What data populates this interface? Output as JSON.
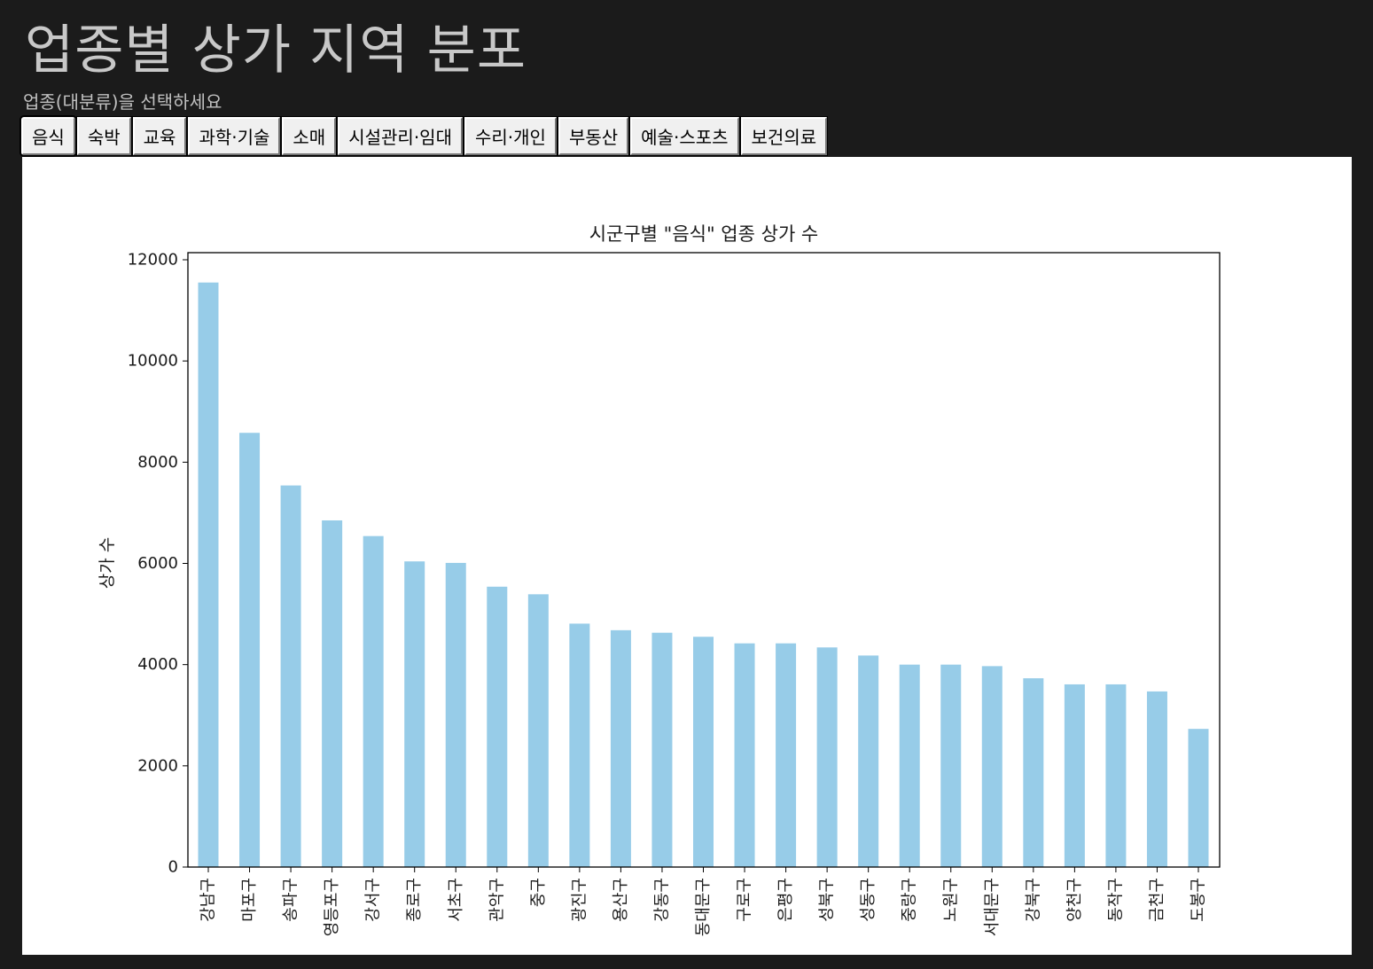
{
  "page": {
    "title": "업종별 상가 지역 분포",
    "instruction": "업종(대분류)을 선택하세요"
  },
  "tabs": [
    {
      "label": "음식",
      "active": true
    },
    {
      "label": "숙박",
      "active": false
    },
    {
      "label": "교육",
      "active": false
    },
    {
      "label": "과학·기술",
      "active": false
    },
    {
      "label": "소매",
      "active": false
    },
    {
      "label": "시설관리·임대",
      "active": false
    },
    {
      "label": "수리·개인",
      "active": false
    },
    {
      "label": "부동산",
      "active": false
    },
    {
      "label": "예술·스포츠",
      "active": false
    },
    {
      "label": "보건의료",
      "active": false
    }
  ],
  "chart_data": {
    "type": "bar",
    "title": "시군구별 \"음식\" 업종 상가 수",
    "xlabel": "",
    "ylabel": "상가 수",
    "ylim": [
      0,
      12000
    ],
    "yticks": [
      0,
      2000,
      4000,
      6000,
      8000,
      10000,
      12000
    ],
    "grid": false,
    "bar_color": "#97cce8",
    "categories": [
      "강남구",
      "마포구",
      "송파구",
      "영등포구",
      "강서구",
      "종로구",
      "서초구",
      "관악구",
      "중구",
      "광진구",
      "용산구",
      "강동구",
      "동대문구",
      "구로구",
      "은평구",
      "성북구",
      "성동구",
      "중랑구",
      "노원구",
      "서대문구",
      "강북구",
      "양천구",
      "동작구",
      "금천구",
      "도봉구"
    ],
    "values": [
      11550,
      8580,
      7540,
      6850,
      6540,
      6040,
      6010,
      5540,
      5390,
      4810,
      4680,
      4630,
      4550,
      4420,
      4420,
      4340,
      4180,
      4000,
      4000,
      3970,
      3730,
      3610,
      3610,
      3470,
      2730
    ]
  }
}
